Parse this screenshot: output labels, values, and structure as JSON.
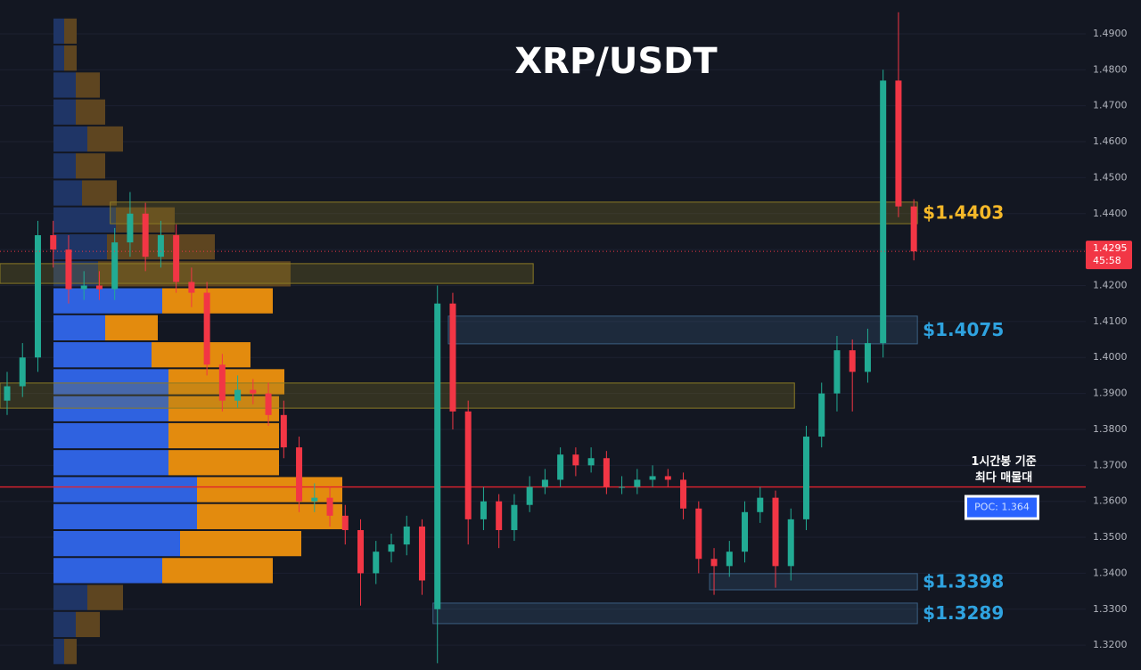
{
  "chart_data": {
    "type": "candlestick",
    "title": "XRP/USDT",
    "open": [
      1.388,
      1.392,
      1.4,
      1.434,
      1.43,
      1.419,
      1.42,
      1.419,
      1.432,
      1.44,
      1.428,
      1.434,
      1.421,
      1.418,
      1.398,
      1.388,
      1.391,
      1.39,
      1.384,
      1.375,
      1.36,
      1.361,
      1.356,
      1.352,
      1.34,
      1.346,
      1.348,
      1.353,
      1.33,
      1.415,
      1.385,
      1.355,
      1.36,
      1.352,
      1.359,
      1.364,
      1.366,
      1.373,
      1.37,
      1.372,
      1.364,
      1.364,
      1.366,
      1.367,
      1.366,
      1.358,
      1.344,
      1.342,
      1.346,
      1.357,
      1.361,
      1.342,
      1.355,
      1.378,
      1.39,
      1.402,
      1.396,
      1.404,
      1.477,
      1.442
    ],
    "high": [
      1.396,
      1.404,
      1.438,
      1.438,
      1.434,
      1.424,
      1.424,
      1.436,
      1.446,
      1.443,
      1.438,
      1.437,
      1.425,
      1.421,
      1.401,
      1.395,
      1.394,
      1.393,
      1.388,
      1.378,
      1.365,
      1.364,
      1.359,
      1.355,
      1.349,
      1.351,
      1.356,
      1.355,
      1.42,
      1.418,
      1.388,
      1.364,
      1.362,
      1.362,
      1.367,
      1.369,
      1.375,
      1.375,
      1.375,
      1.374,
      1.367,
      1.369,
      1.37,
      1.369,
      1.368,
      1.36,
      1.347,
      1.349,
      1.36,
      1.364,
      1.363,
      1.358,
      1.381,
      1.393,
      1.406,
      1.405,
      1.408,
      1.48,
      1.496,
      1.444
    ],
    "low": [
      1.384,
      1.389,
      1.396,
      1.425,
      1.415,
      1.416,
      1.416,
      1.416,
      1.428,
      1.424,
      1.425,
      1.418,
      1.414,
      1.395,
      1.385,
      1.386,
      1.387,
      1.381,
      1.372,
      1.357,
      1.357,
      1.353,
      1.348,
      1.331,
      1.337,
      1.343,
      1.345,
      1.334,
      1.315,
      1.38,
      1.348,
      1.352,
      1.347,
      1.349,
      1.357,
      1.362,
      1.364,
      1.367,
      1.368,
      1.362,
      1.362,
      1.362,
      1.364,
      1.364,
      1.355,
      1.34,
      1.334,
      1.339,
      1.343,
      1.354,
      1.336,
      1.338,
      1.352,
      1.375,
      1.385,
      1.385,
      1.393,
      1.4,
      1.439,
      1.427
    ],
    "close": [
      1.392,
      1.4,
      1.434,
      1.43,
      1.419,
      1.42,
      1.419,
      1.432,
      1.44,
      1.428,
      1.434,
      1.421,
      1.418,
      1.398,
      1.388,
      1.391,
      1.39,
      1.384,
      1.375,
      1.36,
      1.361,
      1.356,
      1.352,
      1.34,
      1.346,
      1.348,
      1.353,
      1.338,
      1.415,
      1.385,
      1.355,
      1.36,
      1.352,
      1.359,
      1.364,
      1.366,
      1.373,
      1.37,
      1.372,
      1.364,
      1.364,
      1.366,
      1.367,
      1.366,
      1.358,
      1.344,
      1.342,
      1.346,
      1.357,
      1.361,
      1.342,
      1.355,
      1.378,
      1.39,
      1.402,
      1.396,
      1.404,
      1.477,
      1.442,
      1.4295
    ],
    "up_color": "#22ab94",
    "down_color": "#f23645",
    "ylim": [
      1.3131,
      1.4994
    ],
    "yticks": [
      {
        "value": 1.32,
        "label": "1.3200"
      },
      {
        "value": 1.33,
        "label": "1.3300"
      },
      {
        "value": 1.34,
        "label": "1.3400"
      },
      {
        "value": 1.35,
        "label": "1.3500"
      },
      {
        "value": 1.36,
        "label": "1.3600"
      },
      {
        "value": 1.37,
        "label": "1.3700"
      },
      {
        "value": 1.38,
        "label": "1.3800"
      },
      {
        "value": 1.39,
        "label": "1.3900"
      },
      {
        "value": 1.4,
        "label": "1.4000"
      },
      {
        "value": 1.41,
        "label": "1.4100"
      },
      {
        "value": 1.42,
        "label": "1.4200"
      },
      {
        "value": 1.43,
        "label": "1.4300"
      },
      {
        "value": 1.44,
        "label": "1.4400"
      },
      {
        "value": 1.45,
        "label": "1.4500"
      },
      {
        "value": 1.46,
        "label": "1.4600"
      },
      {
        "value": 1.47,
        "label": "1.4700"
      },
      {
        "value": 1.48,
        "label": "1.4800"
      },
      {
        "value": 1.49,
        "label": "1.4900"
      }
    ],
    "grid": true,
    "volume_profile": {
      "bins": [
        1.3145,
        1.322,
        1.3295,
        1.337,
        1.3445,
        1.352,
        1.3595,
        1.367,
        1.3745,
        1.382,
        1.3895,
        1.397,
        1.4045,
        1.412,
        1.4195,
        1.427,
        1.4345,
        1.442,
        1.4495,
        1.457,
        1.4645,
        1.472,
        1.4795,
        1.487,
        1.4945
      ],
      "buy": [
        12,
        25,
        38,
        122,
        142,
        161,
        161,
        129,
        129,
        129,
        129,
        110,
        58,
        122,
        50,
        60,
        70,
        32,
        25,
        38,
        25,
        25,
        12,
        12
      ],
      "sell": [
        14,
        27,
        40,
        124,
        136,
        163,
        163,
        124,
        124,
        124,
        130,
        111,
        59,
        124,
        216,
        121,
        66,
        39,
        33,
        40,
        33,
        27,
        14,
        14
      ],
      "value_area": [
        1.337,
        1.4195
      ],
      "buy_color": "#2f62e0",
      "sell_color": "#e38b0e",
      "buy_dim_color": "#1f3566",
      "sell_dim_color": "#5e4520"
    },
    "zones": [
      {
        "low": 1.4372,
        "high": 1.4432,
        "start": 7,
        "end": 59,
        "color": "#8a7a25",
        "label": "$1.4403",
        "label_color": "#f5b829"
      },
      {
        "low": 1.4206,
        "high": 1.4261,
        "start": 0,
        "end": 34,
        "color": "#8a7a25"
      },
      {
        "low": 1.4038,
        "high": 1.4115,
        "start": 29,
        "end": 59,
        "color": "#3b5f82",
        "label": "$1.4075",
        "label_color": "#2fa3e0"
      },
      {
        "low": 1.3859,
        "high": 1.3929,
        "start": 0,
        "end": 51,
        "color": "#8a7a25"
      },
      {
        "low": 1.3354,
        "high": 1.3399,
        "start": 46,
        "end": 59,
        "color": "#3b5f82",
        "label": "$1.3398",
        "label_color": "#2fa3e0"
      },
      {
        "low": 1.326,
        "high": 1.3317,
        "start": 28,
        "end": 59,
        "color": "#3b5f82",
        "label": "$1.3289",
        "label_color": "#2fa3e0"
      }
    ],
    "poc": {
      "value": 1.364,
      "label": "POC: 1.364",
      "color": "#e0222e"
    },
    "annotation": [
      "1시간봉 기준",
      "최다 매물대"
    ],
    "current_price": 1.4295,
    "countdown": "45:58"
  }
}
